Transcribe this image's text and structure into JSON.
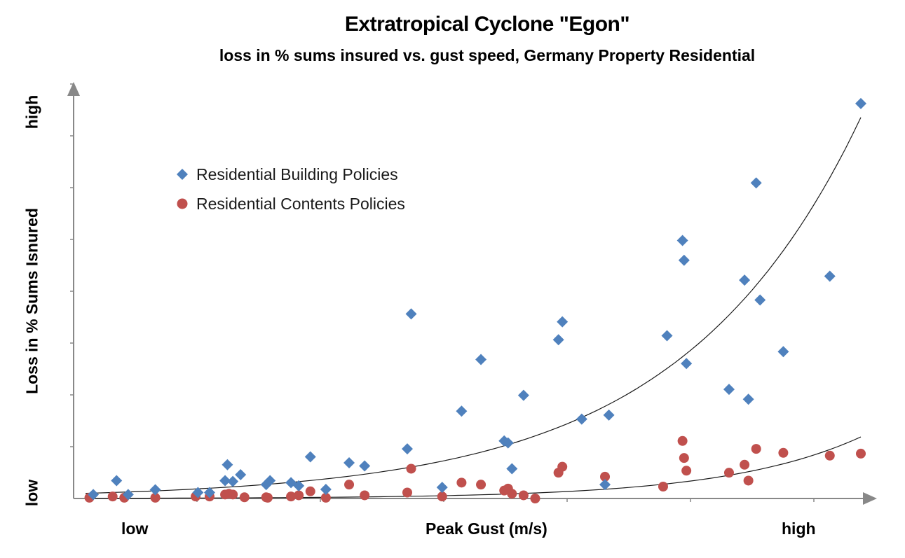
{
  "chart_data": {
    "type": "scatter",
    "title": "Extratropical Cyclone \"Egon\"",
    "subtitle": "loss in % sums insured vs. gust speed, Germany Property Residential",
    "xlabel": "Peak Gust (m/s)",
    "ylabel": "Loss in % Sums Isnured",
    "x_tick_labels": [
      "low",
      "high"
    ],
    "y_tick_labels": [
      "low",
      "high"
    ],
    "xlim": [
      0,
      100
    ],
    "ylim": [
      0,
      100
    ],
    "grid": false,
    "legend_position": "top-left",
    "series": [
      {
        "name": "Residential Building Policies",
        "marker": "diamond",
        "color": "#4F81BD",
        "x": [
          1,
          4,
          5.5,
          9,
          14.5,
          16,
          18,
          18.3,
          19,
          20,
          23.3,
          23.8,
          26.5,
          27.5,
          29,
          31,
          34,
          36,
          41.5,
          42,
          46,
          48.5,
          51,
          54,
          54.5,
          55,
          56.5,
          61,
          61.5,
          64,
          67,
          67.5,
          75,
          77,
          77.2,
          77.5,
          83,
          85,
          85.5,
          86.5,
          87,
          90,
          96,
          100
        ],
        "y": [
          1,
          4.5,
          1,
          2.2,
          1.5,
          1.5,
          4.5,
          8.5,
          4.3,
          6,
          3.5,
          4.5,
          4,
          3.2,
          10.5,
          2.3,
          9,
          8.2,
          12.5,
          46.5,
          2.8,
          22,
          35,
          14.5,
          14,
          7.5,
          26,
          40,
          44.5,
          20,
          3.5,
          21,
          41,
          65,
          60,
          34,
          27.5,
          55,
          25,
          79.5,
          50,
          37,
          56,
          99.5
        ]
      },
      {
        "name": "Residential Contents Policies",
        "marker": "circle",
        "color": "#C0504D",
        "x": [
          0.5,
          3.5,
          5,
          9,
          14.2,
          16,
          18,
          18.5,
          19,
          20.5,
          23.3,
          23.5,
          26.5,
          27.5,
          29,
          31,
          34,
          36,
          41.5,
          42,
          46,
          48.5,
          51,
          54,
          54.5,
          55,
          56.5,
          58,
          61,
          61.5,
          67,
          74.5,
          77,
          77.2,
          77.5,
          83,
          85,
          85.5,
          86.5,
          90,
          96,
          100
        ],
        "y": [
          0.2,
          0.5,
          0.2,
          0.2,
          0.5,
          0.5,
          1,
          1.2,
          1,
          0.3,
          0.3,
          0.2,
          0.5,
          0.8,
          1.8,
          0.2,
          3.5,
          0.8,
          1.5,
          7.5,
          0.5,
          4,
          3.5,
          2,
          2.5,
          1.2,
          0.8,
          0,
          6.5,
          8,
          5.5,
          3,
          14.5,
          10.2,
          7,
          6.5,
          8.5,
          4.5,
          12.5,
          11.5,
          10.8,
          11.3
        ]
      }
    ],
    "trendlines": [
      {
        "series": "Residential Building Policies",
        "type": "exponential",
        "y_start": 1.3,
        "y_end": 96
      },
      {
        "series": "Residential Contents Policies",
        "type": "exponential",
        "y_start": 0.05,
        "y_end": 15.5
      }
    ]
  }
}
